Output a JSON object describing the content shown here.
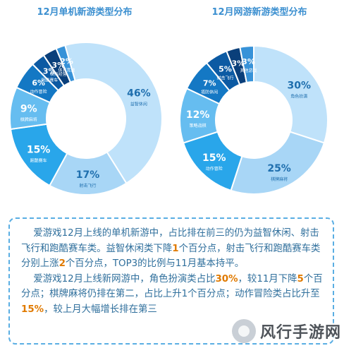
{
  "chart_data": [
    {
      "type": "pie",
      "title": "12月单机新游类型分布",
      "slices": [
        {
          "label": "益智休闲",
          "value": 46,
          "value_text": "46%",
          "color": "#bfe2fa",
          "text_color": "#1f6fae"
        },
        {
          "label": "射击飞行",
          "value": 17,
          "value_text": "17%",
          "color": "#a8d6f6",
          "text_color": "#1f6fae"
        },
        {
          "label": "跑酷赛车",
          "value": 15,
          "value_text": "15%",
          "color": "#29a6ea",
          "text_color": "#ffffff"
        },
        {
          "label": "棋牌麻将",
          "value": 9,
          "value_text": "9%",
          "color": "#66bdf0",
          "text_color": "#ffffff"
        },
        {
          "label": "动作冒险",
          "value": 6,
          "value_text": "6%",
          "color": "#1478c4",
          "text_color": "#ffffff"
        },
        {
          "label": "跑酷赛车",
          "value": 3,
          "value_text": "3%",
          "color": "#0c5aa3",
          "text_color": "#ffffff"
        },
        {
          "label": "模拟经营",
          "value": 3,
          "value_text": "3%",
          "color": "#0a3f7a",
          "text_color": "#ffffff"
        },
        {
          "label": "体育竞技",
          "value": 2,
          "value_text": "2%",
          "color": "#3792d8",
          "text_color": "#ffffff"
        }
      ]
    },
    {
      "type": "pie",
      "title": "12月网游新游类型分布",
      "slices": [
        {
          "label": "角色扮演",
          "value": 30,
          "value_text": "30%",
          "color": "#bfe2fa",
          "text_color": "#1f6fae"
        },
        {
          "label": "棋牌麻将",
          "value": 25,
          "value_text": "25%",
          "color": "#a8d6f6",
          "text_color": "#1f6fae"
        },
        {
          "label": "动作冒险",
          "value": 15,
          "value_text": "15%",
          "color": "#29a6ea",
          "text_color": "#ffffff"
        },
        {
          "label": "策略战棋",
          "value": 12,
          "value_text": "12%",
          "color": "#66bdf0",
          "text_color": "#ffffff"
        },
        {
          "label": "塔防休闲",
          "value": 7,
          "value_text": "7%",
          "color": "#1478c4",
          "text_color": "#ffffff"
        },
        {
          "label": "射击飞行",
          "value": 5,
          "value_text": "5%",
          "color": "#0c5aa3",
          "text_color": "#ffffff"
        },
        {
          "label": "",
          "value": 3,
          "value_text": "3%",
          "color": "#0a3f7a",
          "text_color": "#ffffff"
        },
        {
          "label": "其他游戏",
          "value": 3,
          "value_text": "3%",
          "color": "#3792d8",
          "text_color": "#ffffff"
        }
      ]
    }
  ],
  "note": {
    "p1": [
      "爱游戏12月上线的单机新游中，占比排在前三的仍为益智休闲、射击飞行和跑酷赛车类。益智休闲类下降",
      "1",
      "个百分点，射击飞行和跑酷赛车类分别上涨",
      "2",
      "个百分点，TOP3的比例与11月基本持平。"
    ],
    "p2": [
      "爱游戏12月上线新网游中，角色扮演类占比",
      "30%",
      "，较11月下降",
      "5",
      "个百分点；棋牌麻将仍排在第二，占比上升1个百分点；动作冒险类占比升至",
      "15%",
      "，较上月大幅增长排在第三"
    ]
  },
  "watermark": {
    "text": "风行手游网"
  }
}
